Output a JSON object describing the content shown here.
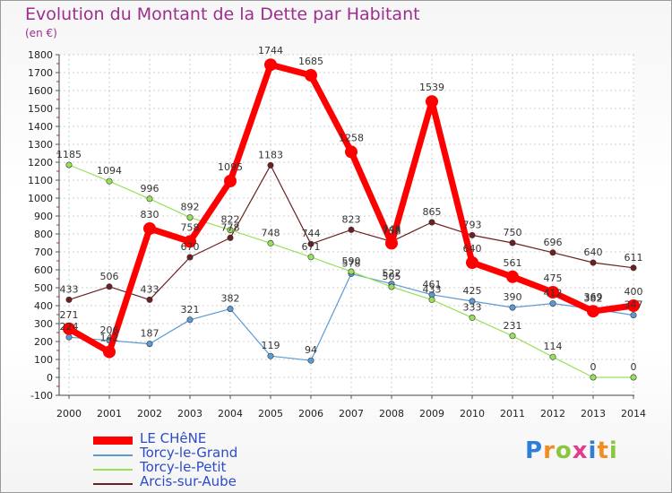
{
  "chart_data": {
    "type": "line",
    "title": "Evolution du Montant de la Dette par Habitant",
    "unit": "(en €)",
    "x": [
      "2000",
      "2001",
      "2002",
      "2003",
      "2004",
      "2005",
      "2006",
      "2007",
      "2008",
      "2009",
      "2010",
      "2011",
      "2012",
      "2013",
      "2014"
    ],
    "ylim": [
      -100,
      1800
    ],
    "yticks": [
      -100,
      0,
      100,
      200,
      300,
      400,
      500,
      600,
      700,
      800,
      900,
      1000,
      1100,
      1200,
      1300,
      1400,
      1500,
      1600,
      1700,
      1800
    ],
    "grid": true,
    "legend_position": "bottom-left",
    "series": [
      {
        "name": "LE CHêNE",
        "color": "#ff0000",
        "values": [
          271,
          142,
          830,
          758,
          1095,
          1744,
          1685,
          1258,
          748,
          1539,
          640,
          561,
          475,
          369,
          400
        ]
      },
      {
        "name": "Torcy-le-Grand",
        "color": "#5b9bd5",
        "values": [
          224,
          206,
          187,
          321,
          382,
          119,
          94,
          578,
          522,
          461,
          425,
          390,
          412,
          382,
          347
        ]
      },
      {
        "name": "Torcy-le-Petit",
        "color": "#99e05a",
        "values": [
          1185,
          1094,
          996,
          892,
          822,
          748,
          671,
          590,
          505,
          433,
          333,
          231,
          114,
          0,
          0
        ]
      },
      {
        "name": "Arcis-sur-Aube",
        "color": "#6e1f1f",
        "values": [
          433,
          506,
          433,
          670,
          778,
          1183,
          744,
          823,
          758,
          865,
          793,
          750,
          696,
          640,
          611
        ]
      }
    ],
    "point_labels": [
      {
        "series": 0,
        "labels": [
          "271",
          "142",
          "830",
          "758",
          "1095",
          "1744",
          "1685",
          "1258",
          "748",
          "1539",
          "640",
          "561",
          "475",
          "369",
          "400"
        ]
      },
      {
        "series": 1,
        "labels": [
          "224",
          "206",
          "187",
          "321",
          "382",
          "119",
          "94",
          "578",
          "522",
          "461",
          "425",
          "390",
          "412",
          "382",
          "347"
        ]
      },
      {
        "series": 2,
        "labels": [
          "1185",
          "1094",
          "996",
          "892",
          "822",
          "748",
          "671",
          "590",
          "505",
          "433",
          "333",
          "231",
          "114",
          "0",
          "0"
        ]
      },
      {
        "series": 3,
        "labels": [
          "433",
          "506",
          "433",
          "670",
          "778",
          "1183",
          "744",
          "823",
          "758",
          "865",
          "793",
          "750",
          "696",
          "640",
          "611"
        ]
      }
    ]
  },
  "brand": {
    "letters": [
      "P",
      "r",
      "o",
      "x",
      "i",
      "t",
      "i"
    ],
    "colors": [
      "#2f7fd6",
      "#f28c1e",
      "#8cc63f",
      "#e23b8f",
      "#2f7fd6",
      "#f28c1e",
      "#8cc63f"
    ]
  }
}
